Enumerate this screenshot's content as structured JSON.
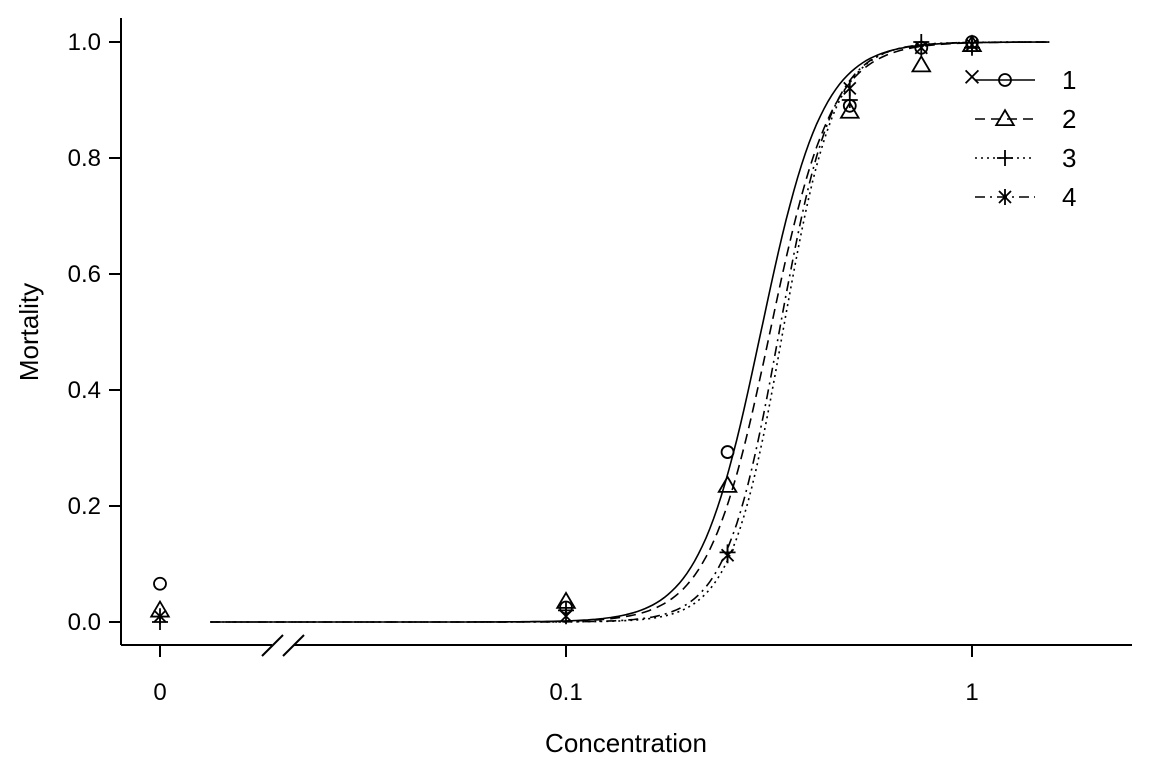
{
  "chart_data": {
    "type": "line",
    "xlabel": "Concentration",
    "ylabel": "Mortality",
    "x_scale": "log",
    "x_break": "0 shown on broken axis segment",
    "xlim": [
      0.0133,
      1.55
    ],
    "ylim": [
      0,
      1
    ],
    "x_ticks": [
      {
        "value": 0,
        "label": "0"
      },
      {
        "value": 0.1,
        "label": "0.1"
      },
      {
        "value": 1,
        "label": "1"
      }
    ],
    "y_ticks": [
      {
        "value": 0.0,
        "label": "0.0"
      },
      {
        "value": 0.2,
        "label": "0.2"
      },
      {
        "value": 0.4,
        "label": "0.4"
      },
      {
        "value": 0.6,
        "label": "0.6"
      },
      {
        "value": 0.8,
        "label": "0.8"
      },
      {
        "value": 1.0,
        "label": "1.0"
      }
    ],
    "grid": false,
    "legend_position": "top-right",
    "series": [
      {
        "name": "1",
        "marker": "circle",
        "line": "solid",
        "points": [
          [
            0,
            0.066
          ],
          [
            0.1,
            0.025
          ],
          [
            0.25,
            0.293
          ],
          [
            0.5,
            0.89
          ],
          [
            0.75,
            0.99
          ],
          [
            1.0,
            1.0
          ]
        ],
        "fit": {
          "ec50": 0.302,
          "slope": 5.7
        }
      },
      {
        "name": "2",
        "marker": "triangle",
        "line": "dashed",
        "points": [
          [
            0,
            0.02
          ],
          [
            0.1,
            0.035
          ],
          [
            0.25,
            0.235
          ],
          [
            0.5,
            0.88
          ],
          [
            0.75,
            0.96
          ],
          [
            1.0,
            0.995
          ]
        ],
        "fit": {
          "ec50": 0.318,
          "slope": 5.7
        }
      },
      {
        "name": "3",
        "marker": "plus",
        "line": "dotted",
        "points": [
          [
            0,
            0.0
          ],
          [
            0.1,
            0.02
          ],
          [
            0.25,
            0.12
          ],
          [
            0.5,
            0.9
          ],
          [
            0.75,
            1.0
          ],
          [
            1.0,
            0.99
          ]
        ],
        "fit": {
          "ec50": 0.342,
          "slope": 6.8
        }
      },
      {
        "name": "4",
        "marker": "asterisk",
        "line": "dashdot",
        "points": [
          [
            0,
            0.01
          ],
          [
            0.1,
            0.01
          ],
          [
            0.25,
            0.115
          ],
          [
            0.5,
            0.92
          ],
          [
            0.75,
            0.99
          ],
          [
            1.0,
            0.995
          ]
        ],
        "fit": {
          "ec50": 0.335,
          "slope": 6.6
        }
      }
    ],
    "annotations": [
      {
        "type": "marker",
        "symbol": "x",
        "x": 1.0,
        "y": 0.94
      }
    ]
  }
}
